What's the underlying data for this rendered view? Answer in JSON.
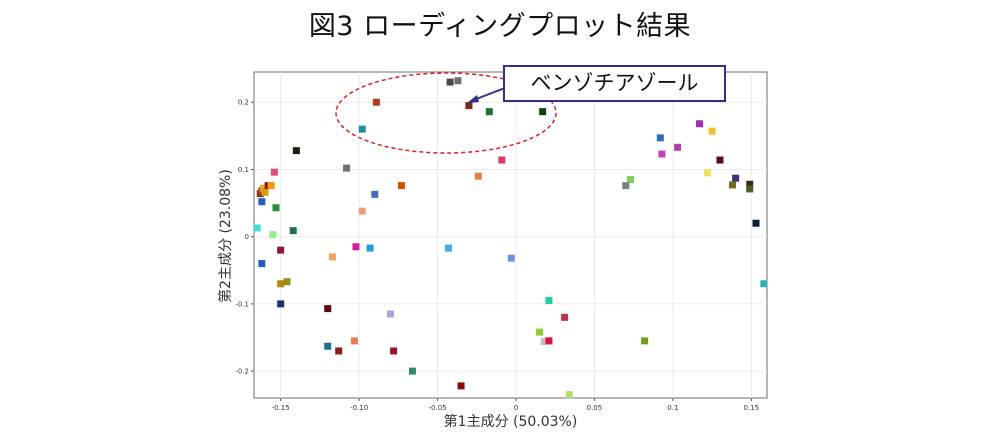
{
  "chart_data": {
    "type": "scatter",
    "title": "図3 ローディングプロット結果",
    "xlabel": "第1主成分 (50.03%)",
    "ylabel": "第2主成分 (23.08%)",
    "xlim": [
      -0.167,
      0.16
    ],
    "ylim": [
      -0.24,
      0.245
    ],
    "xticks": [
      -0.15,
      -0.1,
      -0.05,
      0,
      0.05,
      0.1,
      0.15
    ],
    "xtick_labels": [
      "-0.15",
      "-0.10",
      "-0.05",
      "0",
      "0.05",
      "0.1",
      "0.15"
    ],
    "yticks": [
      0.2,
      0.1,
      0,
      -0.1,
      -0.2
    ],
    "ytick_labels": [
      "0.2",
      "0.1",
      "0",
      "-0.1",
      "-0.2"
    ],
    "grid": true,
    "annotation": {
      "text": "ベンゾチアゾール",
      "point": {
        "x": -0.03,
        "y": 0.195
      },
      "ellipse_color": "#e02020",
      "box_color": "#3a2d8a"
    },
    "points": [
      {
        "x": -0.163,
        "y": 0.064,
        "color": "#7a3b1a"
      },
      {
        "x": -0.162,
        "y": 0.068,
        "color": "#c0392b"
      },
      {
        "x": -0.161,
        "y": 0.072,
        "color": "#e6a817"
      },
      {
        "x": -0.16,
        "y": 0.066,
        "color": "#d4a017"
      },
      {
        "x": -0.158,
        "y": 0.076,
        "color": "#8b1a1a"
      },
      {
        "x": -0.156,
        "y": 0.076,
        "color": "#f39c12"
      },
      {
        "x": -0.162,
        "y": 0.052,
        "color": "#1f5fbf"
      },
      {
        "x": -0.154,
        "y": 0.096,
        "color": "#e24a7a"
      },
      {
        "x": -0.153,
        "y": 0.043,
        "color": "#2e8b3a"
      },
      {
        "x": -0.165,
        "y": 0.013,
        "color": "#40e0d0"
      },
      {
        "x": -0.155,
        "y": 0.003,
        "color": "#90ee90"
      },
      {
        "x": -0.15,
        "y": -0.02,
        "color": "#8b1a3a"
      },
      {
        "x": -0.162,
        "y": -0.04,
        "color": "#1f5fbf"
      },
      {
        "x": -0.15,
        "y": -0.07,
        "color": "#b8860b"
      },
      {
        "x": -0.146,
        "y": -0.067,
        "color": "#9c8a1a"
      },
      {
        "x": -0.15,
        "y": -0.1,
        "color": "#1f2f6f"
      },
      {
        "x": -0.14,
        "y": 0.128,
        "color": "#2b1a0a"
      },
      {
        "x": -0.142,
        "y": 0.009,
        "color": "#1f6f4f"
      },
      {
        "x": -0.108,
        "y": 0.102,
        "color": "#6f6f6f"
      },
      {
        "x": -0.098,
        "y": 0.16,
        "color": "#1f8fa0"
      },
      {
        "x": -0.09,
        "y": 0.063,
        "color": "#3f6fbf"
      },
      {
        "x": -0.073,
        "y": 0.076,
        "color": "#d35400"
      },
      {
        "x": -0.098,
        "y": 0.038,
        "color": "#e8a07a"
      },
      {
        "x": -0.102,
        "y": -0.015,
        "color": "#d81b9a"
      },
      {
        "x": -0.093,
        "y": -0.017,
        "color": "#1fa0d8"
      },
      {
        "x": -0.117,
        "y": -0.03,
        "color": "#f4a460"
      },
      {
        "x": -0.12,
        "y": -0.107,
        "color": "#5a0a0a"
      },
      {
        "x": -0.08,
        "y": -0.115,
        "color": "#b39ddb"
      },
      {
        "x": -0.12,
        "y": -0.163,
        "color": "#1f6f8f"
      },
      {
        "x": -0.113,
        "y": -0.17,
        "color": "#8b1a1a"
      },
      {
        "x": -0.103,
        "y": -0.155,
        "color": "#e67e50"
      },
      {
        "x": -0.078,
        "y": -0.17,
        "color": "#a0102a"
      },
      {
        "x": -0.066,
        "y": -0.2,
        "color": "#2e8b6a"
      },
      {
        "x": -0.035,
        "y": -0.222,
        "color": "#8b0a0a"
      },
      {
        "x": -0.089,
        "y": 0.2,
        "color": "#b0401a"
      },
      {
        "x": -0.042,
        "y": 0.23,
        "color": "#4a4a4a"
      },
      {
        "x": -0.037,
        "y": 0.232,
        "color": "#6f6f6f"
      },
      {
        "x": -0.03,
        "y": 0.195,
        "color": "#7a2a1a"
      },
      {
        "x": -0.017,
        "y": 0.186,
        "color": "#1f6f2f"
      },
      {
        "x": 0.017,
        "y": 0.186,
        "color": "#0f3f0f"
      },
      {
        "x": -0.009,
        "y": 0.114,
        "color": "#e23a5a"
      },
      {
        "x": -0.024,
        "y": 0.09,
        "color": "#e8803a"
      },
      {
        "x": -0.043,
        "y": -0.017,
        "color": "#40b0e0"
      },
      {
        "x": -0.003,
        "y": -0.032,
        "color": "#6f8fdf"
      },
      {
        "x": 0.021,
        "y": -0.095,
        "color": "#20d0a0"
      },
      {
        "x": 0.031,
        "y": -0.12,
        "color": "#c0304a"
      },
      {
        "x": 0.015,
        "y": -0.142,
        "color": "#8fcf2f"
      },
      {
        "x": 0.018,
        "y": -0.156,
        "color": "#c0c0c0"
      },
      {
        "x": 0.021,
        "y": -0.155,
        "color": "#e0104a"
      },
      {
        "x": 0.034,
        "y": -0.235,
        "color": "#b0e070"
      },
      {
        "x": 0.082,
        "y": -0.155,
        "color": "#6f9f1f"
      },
      {
        "x": 0.092,
        "y": 0.147,
        "color": "#2f6fbf"
      },
      {
        "x": 0.093,
        "y": 0.123,
        "color": "#c040c0"
      },
      {
        "x": 0.103,
        "y": 0.133,
        "color": "#b040b0"
      },
      {
        "x": 0.073,
        "y": 0.085,
        "color": "#7fcf5f"
      },
      {
        "x": 0.07,
        "y": 0.076,
        "color": "#7f7f7f"
      },
      {
        "x": 0.117,
        "y": 0.168,
        "color": "#9f2faf"
      },
      {
        "x": 0.125,
        "y": 0.157,
        "color": "#f0c030"
      },
      {
        "x": 0.13,
        "y": 0.114,
        "color": "#5a0a2a"
      },
      {
        "x": 0.122,
        "y": 0.095,
        "color": "#f0e060"
      },
      {
        "x": 0.14,
        "y": 0.087,
        "color": "#3f2f7f"
      },
      {
        "x": 0.138,
        "y": 0.077,
        "color": "#6f6f1f"
      },
      {
        "x": 0.149,
        "y": 0.078,
        "color": "#3a2a0a"
      },
      {
        "x": 0.149,
        "y": 0.071,
        "color": "#4f5f2f"
      },
      {
        "x": 0.153,
        "y": 0.02,
        "color": "#0f1f2f"
      },
      {
        "x": 0.158,
        "y": -0.07,
        "color": "#30b0b0"
      }
    ]
  }
}
